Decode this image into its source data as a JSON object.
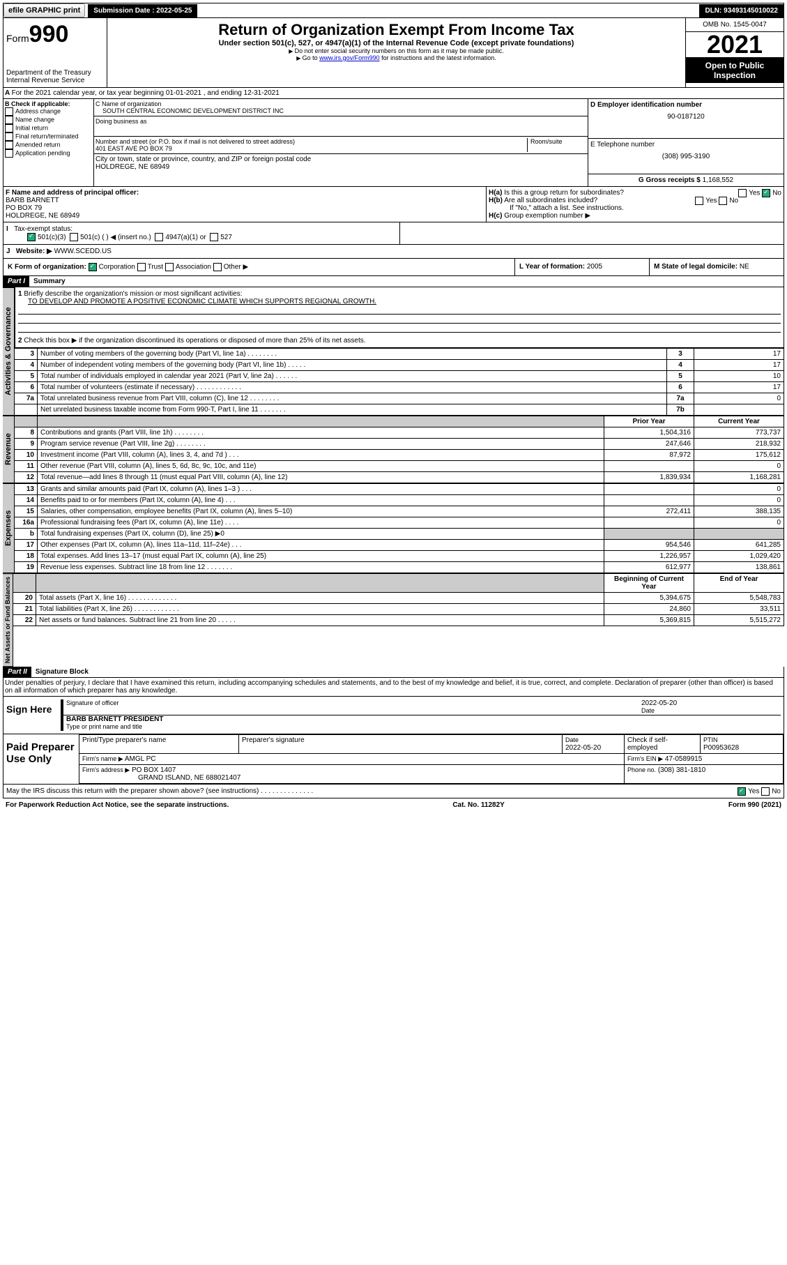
{
  "top": {
    "efile": "efile GRAPHIC print",
    "submission": "Submission Date : 2022-05-25",
    "dln": "DLN: 93493145010022"
  },
  "header": {
    "form": "Form",
    "number": "990",
    "dept": "Department of the Treasury Internal Revenue Service",
    "title": "Return of Organization Exempt From Income Tax",
    "subtitle": "Under section 501(c), 527, or 4947(a)(1) of the Internal Revenue Code (except private foundations)",
    "note1": "Do not enter social security numbers on this form as it may be made public.",
    "note2_pre": "Go to ",
    "note2_link": "www.irs.gov/Form990",
    "note2_post": " for instructions and the latest information.",
    "omb": "OMB No. 1545-0047",
    "year": "2021",
    "otp": "Open to Public Inspection"
  },
  "A": {
    "text": "For the 2021 calendar year, or tax year beginning 01-01-2021   , and ending 12-31-2021"
  },
  "B": {
    "label": "B Check if applicable:",
    "items": [
      "Address change",
      "Name change",
      "Initial return",
      "Final return/terminated",
      "Amended return",
      "Application pending"
    ]
  },
  "C": {
    "name_label": "C Name of organization",
    "name": "SOUTH CENTRAL ECONOMIC DEVELOPMENT DISTRICT INC",
    "dba_label": "Doing business as",
    "dba": "",
    "street_label": "Number and street (or P.O. box if mail is not delivered to street address)",
    "room_label": "Room/suite",
    "street": "401 EAST AVE PO BOX 79",
    "city_label": "City or town, state or province, country, and ZIP or foreign postal code",
    "city": "HOLDREGE, NE  68949"
  },
  "D": {
    "label": "D Employer identification number",
    "value": "90-0187120"
  },
  "E": {
    "label": "E Telephone number",
    "value": "(308) 995-3190"
  },
  "G": {
    "label": "G Gross receipts $",
    "value": "1,168,552"
  },
  "F": {
    "label": "F Name and address of principal officer:",
    "name": "BARB BARNETT",
    "addr1": "PO BOX 79",
    "addr2": "HOLDREGE, NE  68949"
  },
  "H": {
    "a": "Is this a group return for subordinates?",
    "b": "Are all subordinates included?",
    "b_note": "If \"No,\" attach a list. See instructions.",
    "c": "Group exemption number ▶"
  },
  "I": {
    "label": "Tax-exempt status:",
    "opts": [
      "501(c)(3)",
      "501(c) (  ) ◀ (insert no.)",
      "4947(a)(1) or",
      "527"
    ]
  },
  "J": {
    "label": "Website: ▶",
    "value": "WWW.SCEDD.US"
  },
  "K": {
    "label": "K Form of organization:",
    "opts": [
      "Corporation",
      "Trust",
      "Association",
      "Other ▶"
    ]
  },
  "L": {
    "label": "L Year of formation:",
    "value": "2005"
  },
  "M": {
    "label": "M State of legal domicile:",
    "value": "NE"
  },
  "part1": {
    "head": "Part I",
    "title": "Summary",
    "q1": "Briefly describe the organization's mission or most significant activities:",
    "a1": "TO DEVELOP AND PROMOTE A POSITIVE ECONOMIC CLIMATE WHICH SUPPORTS REGIONAL GROWTH.",
    "q2": "Check this box ▶     if the organization discontinued its operations or disposed of more than 25% of its net assets.",
    "rows_gov": [
      {
        "n": "3",
        "t": "Number of voting members of the governing body (Part VI, line 1a)  .   .   .   .   .   .   .   .",
        "box": "3",
        "v": "17"
      },
      {
        "n": "4",
        "t": "Number of independent voting members of the governing body (Part VI, line 1b)  .   .   .   .   .",
        "box": "4",
        "v": "17"
      },
      {
        "n": "5",
        "t": "Total number of individuals employed in calendar year 2021 (Part V, line 2a)  .   .   .   .   .   .",
        "box": "5",
        "v": "10"
      },
      {
        "n": "6",
        "t": "Total number of volunteers (estimate if necessary)  .   .   .   .   .   .   .   .   .   .   .   .",
        "box": "6",
        "v": "17"
      },
      {
        "n": "7a",
        "t": "Total unrelated business revenue from Part VIII, column (C), line 12  .   .   .   .   .   .   .   .",
        "box": "7a",
        "v": "0"
      },
      {
        "n": "",
        "t": "Net unrelated business taxable income from Form 990-T, Part I, line 11  .   .   .   .   .   .   .",
        "box": "7b",
        "v": ""
      }
    ],
    "col_prior": "Prior Year",
    "col_curr": "Current Year",
    "rows_rev": [
      {
        "n": "8",
        "t": "Contributions and grants (Part VIII, line 1h)  .   .   .   .   .   .   .   .",
        "p": "1,504,316",
        "c": "773,737"
      },
      {
        "n": "9",
        "t": "Program service revenue (Part VIII, line 2g)  .   .   .   .   .   .   .   .",
        "p": "247,646",
        "c": "218,932"
      },
      {
        "n": "10",
        "t": "Investment income (Part VIII, column (A), lines 3, 4, and 7d )  .   .   .",
        "p": "87,972",
        "c": "175,612"
      },
      {
        "n": "11",
        "t": "Other revenue (Part VIII, column (A), lines 5, 6d, 8c, 9c, 10c, and 11e)",
        "p": "",
        "c": "0"
      },
      {
        "n": "12",
        "t": "Total revenue—add lines 8 through 11 (must equal Part VIII, column (A), line 12)",
        "p": "1,839,934",
        "c": "1,168,281"
      }
    ],
    "rows_exp": [
      {
        "n": "13",
        "t": "Grants and similar amounts paid (Part IX, column (A), lines 1–3 )  .   .   .",
        "p": "",
        "c": "0"
      },
      {
        "n": "14",
        "t": "Benefits paid to or for members (Part IX, column (A), line 4)  .   .   .",
        "p": "",
        "c": "0"
      },
      {
        "n": "15",
        "t": "Salaries, other compensation, employee benefits (Part IX, column (A), lines 5–10)",
        "p": "272,411",
        "c": "388,135"
      },
      {
        "n": "16a",
        "t": "Professional fundraising fees (Part IX, column (A), line 11e)  .   .   .   .",
        "p": "",
        "c": "0"
      },
      {
        "n": "b",
        "t": "Total fundraising expenses (Part IX, column (D), line 25) ▶0",
        "p": "shade",
        "c": "shade"
      },
      {
        "n": "17",
        "t": "Other expenses (Part IX, column (A), lines 11a–11d, 11f–24e)  .   .   .",
        "p": "954,546",
        "c": "641,285"
      },
      {
        "n": "18",
        "t": "Total expenses. Add lines 13–17 (must equal Part IX, column (A), line 25)",
        "p": "1,226,957",
        "c": "1,029,420"
      },
      {
        "n": "19",
        "t": "Revenue less expenses. Subtract line 18 from line 12  .   .   .   .   .   .   .",
        "p": "612,977",
        "c": "138,861"
      }
    ],
    "col_beg": "Beginning of Current Year",
    "col_end": "End of Year",
    "rows_net": [
      {
        "n": "20",
        "t": "Total assets (Part X, line 16)  .   .   .   .   .   .   .   .   .   .   .   .   .",
        "p": "5,394,675",
        "c": "5,548,783"
      },
      {
        "n": "21",
        "t": "Total liabilities (Part X, line 26)  .   .   .   .   .   .   .   .   .   .   .   .",
        "p": "24,860",
        "c": "33,511"
      },
      {
        "n": "22",
        "t": "Net assets or fund balances. Subtract line 21 from line 20  .   .   .   .   .",
        "p": "5,369,815",
        "c": "5,515,272"
      }
    ],
    "tabs": [
      "Activities & Governance",
      "Revenue",
      "Expenses",
      "Net Assets or Fund Balances"
    ]
  },
  "part2": {
    "head": "Part II",
    "title": "Signature Block",
    "decl": "Under penalties of perjury, I declare that I have examined this return, including accompanying schedules and statements, and to the best of my knowledge and belief, it is true, correct, and complete. Declaration of preparer (other than officer) is based on all information of which preparer has any knowledge.",
    "sign_here": "Sign Here",
    "sig_officer": "Signature of officer",
    "sig_date": "2022-05-20",
    "date_label": "Date",
    "officer_name": "BARB BARNETT PRESIDENT",
    "type_name": "Type or print name and title",
    "paid": "Paid Preparer Use Only",
    "prep_name_label": "Print/Type preparer's name",
    "prep_sig_label": "Preparer's signature",
    "prep_date": "2022-05-20",
    "check_self": "Check     if self-employed",
    "ptin_label": "PTIN",
    "ptin": "P00953628",
    "firm_name_label": "Firm's name    ▶",
    "firm_name": "AMGL PC",
    "firm_ein_label": "Firm's EIN ▶",
    "firm_ein": "47-0589915",
    "firm_addr_label": "Firm's address ▶",
    "firm_addr": "PO BOX 1407",
    "firm_city": "GRAND ISLAND, NE  688021407",
    "phone_label": "Phone no.",
    "phone": "(308) 381-1810",
    "discuss": "May the IRS discuss this return with the preparer shown above? (see instructions)  .   .   .   .   .   .   .   .   .   .   .   .   .   ."
  },
  "footer": {
    "left": "For Paperwork Reduction Act Notice, see the separate instructions.",
    "mid": "Cat. No. 11282Y",
    "right": "Form 990 (2021)"
  }
}
